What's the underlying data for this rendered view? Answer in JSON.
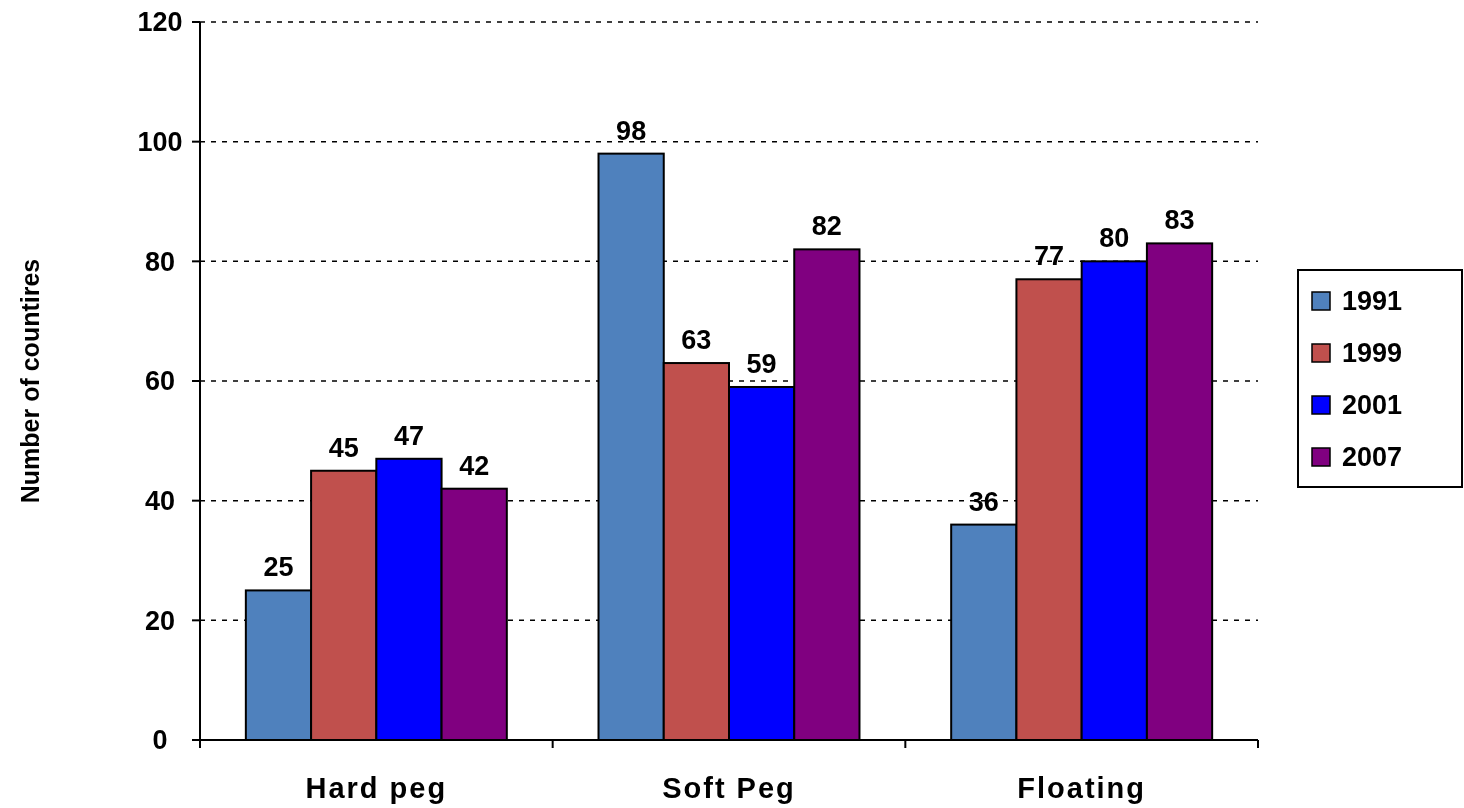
{
  "chart_data": {
    "type": "bar",
    "ylabel": "Number of countires",
    "categories": [
      "Hard peg",
      "Soft Peg",
      "Floating"
    ],
    "series": [
      {
        "name": "1991",
        "color": "#4f81bd",
        "values": [
          25,
          98,
          36
        ]
      },
      {
        "name": "1999",
        "color": "#c0504d",
        "values": [
          45,
          63,
          77
        ]
      },
      {
        "name": "2001",
        "color": "#0000ff",
        "values": [
          47,
          59,
          80
        ]
      },
      {
        "name": "2007",
        "color": "#800080",
        "values": [
          42,
          82,
          83
        ]
      }
    ],
    "ylim": [
      0,
      120
    ],
    "yticks": [
      0,
      20,
      40,
      60,
      80,
      100,
      120
    ],
    "grid": "y",
    "line_style": "dashed",
    "legend": "right",
    "data_labels": true
  }
}
